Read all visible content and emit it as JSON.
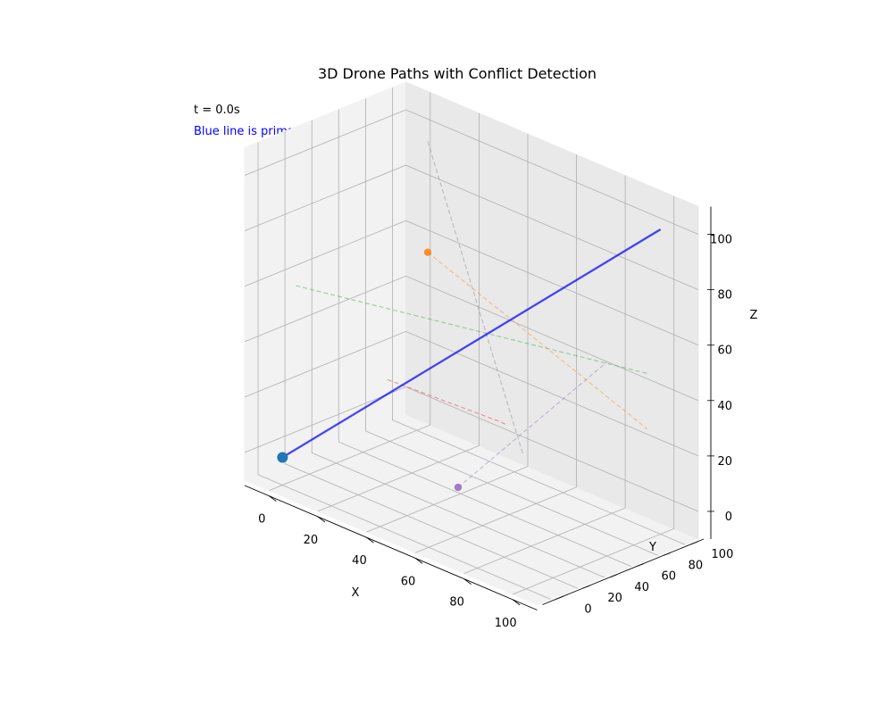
{
  "chart_data": {
    "type": "line3d",
    "title": "3D Drone Paths with Conflict Detection",
    "annotations": {
      "time_text": "t = 0.0s",
      "legend_note": "Blue line is primary drone path",
      "legend_note_color": "#0000ff"
    },
    "xlabel": "X",
    "ylabel": "Y",
    "zlabel": "Z",
    "xlim": [
      -10,
      110
    ],
    "ylim": [
      -10,
      110
    ],
    "zlim": [
      -10,
      110
    ],
    "x_ticks": [
      "0",
      "20",
      "40",
      "60",
      "80",
      "100"
    ],
    "y_ticks": [
      "0",
      "20",
      "40",
      "60",
      "80",
      "100"
    ],
    "z_ticks": [
      "0",
      "20",
      "40",
      "60",
      "80",
      "100"
    ],
    "grid": true,
    "primary_path": {
      "color": "#0000ff",
      "start": [
        0,
        0,
        0
      ],
      "end": [
        100,
        100,
        100
      ],
      "marker_at": [
        0,
        0,
        0
      ],
      "marker_color": "#1f77b4"
    },
    "other_paths": [
      {
        "color": "#ff7f0e",
        "start": [
          10,
          90,
          60
        ],
        "end": [
          100,
          90,
          30
        ],
        "marker_at": [
          10,
          90,
          60
        ]
      },
      {
        "color": "#2ca02c",
        "start": [
          0,
          10,
          60
        ],
        "end": [
          100,
          90,
          50
        ]
      },
      {
        "color": "#d62728",
        "start": [
          10,
          60,
          20
        ],
        "end": [
          70,
          40,
          30
        ],
        "via": [
          40,
          90,
          10
        ]
      },
      {
        "color": "#9467bd",
        "start": [
          50,
          40,
          0
        ],
        "end": [
          100,
          60,
          60
        ],
        "marker_at": [
          50,
          40,
          0
        ]
      },
      {
        "color": "#7f7f7f",
        "start": [
          10,
          90,
          100
        ],
        "end": [
          60,
          70,
          10
        ]
      }
    ]
  }
}
